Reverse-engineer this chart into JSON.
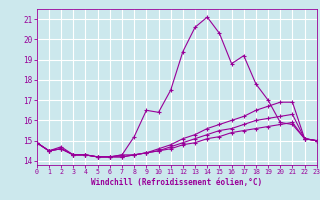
{
  "xlabel": "Windchill (Refroidissement éolien,°C)",
  "ylabel": "",
  "xlim": [
    0,
    23
  ],
  "ylim": [
    13.8,
    21.5
  ],
  "yticks": [
    14,
    15,
    16,
    17,
    18,
    19,
    20,
    21
  ],
  "xticks": [
    0,
    1,
    2,
    3,
    4,
    5,
    6,
    7,
    8,
    9,
    10,
    11,
    12,
    13,
    14,
    15,
    16,
    17,
    18,
    19,
    20,
    21,
    22,
    23
  ],
  "bg_color": "#cce8ed",
  "grid_color": "#ffffff",
  "line_color": "#990099",
  "lines": [
    {
      "x": [
        0,
        1,
        2,
        3,
        4,
        5,
        6,
        7,
        8,
        9,
        10,
        11,
        12,
        13,
        14,
        15,
        16,
        17,
        18,
        19,
        20,
        21,
        22,
        23
      ],
      "y": [
        14.9,
        14.5,
        14.7,
        14.3,
        14.3,
        14.2,
        14.2,
        14.3,
        15.2,
        16.5,
        16.4,
        17.5,
        19.4,
        20.6,
        21.1,
        20.3,
        18.8,
        19.2,
        17.8,
        17.0,
        15.9,
        15.8,
        15.1,
        15.0
      ]
    },
    {
      "x": [
        0,
        1,
        2,
        3,
        4,
        5,
        6,
        7,
        8,
        9,
        10,
        11,
        12,
        13,
        14,
        15,
        16,
        17,
        18,
        19,
        20,
        21,
        22,
        23
      ],
      "y": [
        14.9,
        14.5,
        14.6,
        14.3,
        14.3,
        14.2,
        14.2,
        14.3,
        14.3,
        14.4,
        14.6,
        14.8,
        15.1,
        15.3,
        15.6,
        15.8,
        16.0,
        16.2,
        16.5,
        16.7,
        16.9,
        16.9,
        15.1,
        15.0
      ]
    },
    {
      "x": [
        0,
        1,
        2,
        3,
        4,
        5,
        6,
        7,
        8,
        9,
        10,
        11,
        12,
        13,
        14,
        15,
        16,
        17,
        18,
        19,
        20,
        21,
        22,
        23
      ],
      "y": [
        14.9,
        14.5,
        14.6,
        14.3,
        14.3,
        14.2,
        14.2,
        14.2,
        14.3,
        14.4,
        14.5,
        14.7,
        14.9,
        15.1,
        15.3,
        15.5,
        15.6,
        15.8,
        16.0,
        16.1,
        16.2,
        16.3,
        15.1,
        15.0
      ]
    },
    {
      "x": [
        0,
        1,
        2,
        3,
        4,
        5,
        6,
        7,
        8,
        9,
        10,
        11,
        12,
        13,
        14,
        15,
        16,
        17,
        18,
        19,
        20,
        21,
        22,
        23
      ],
      "y": [
        14.9,
        14.5,
        14.6,
        14.3,
        14.3,
        14.2,
        14.2,
        14.2,
        14.3,
        14.4,
        14.5,
        14.6,
        14.8,
        14.9,
        15.1,
        15.2,
        15.4,
        15.5,
        15.6,
        15.7,
        15.8,
        15.9,
        15.1,
        15.0
      ]
    }
  ]
}
